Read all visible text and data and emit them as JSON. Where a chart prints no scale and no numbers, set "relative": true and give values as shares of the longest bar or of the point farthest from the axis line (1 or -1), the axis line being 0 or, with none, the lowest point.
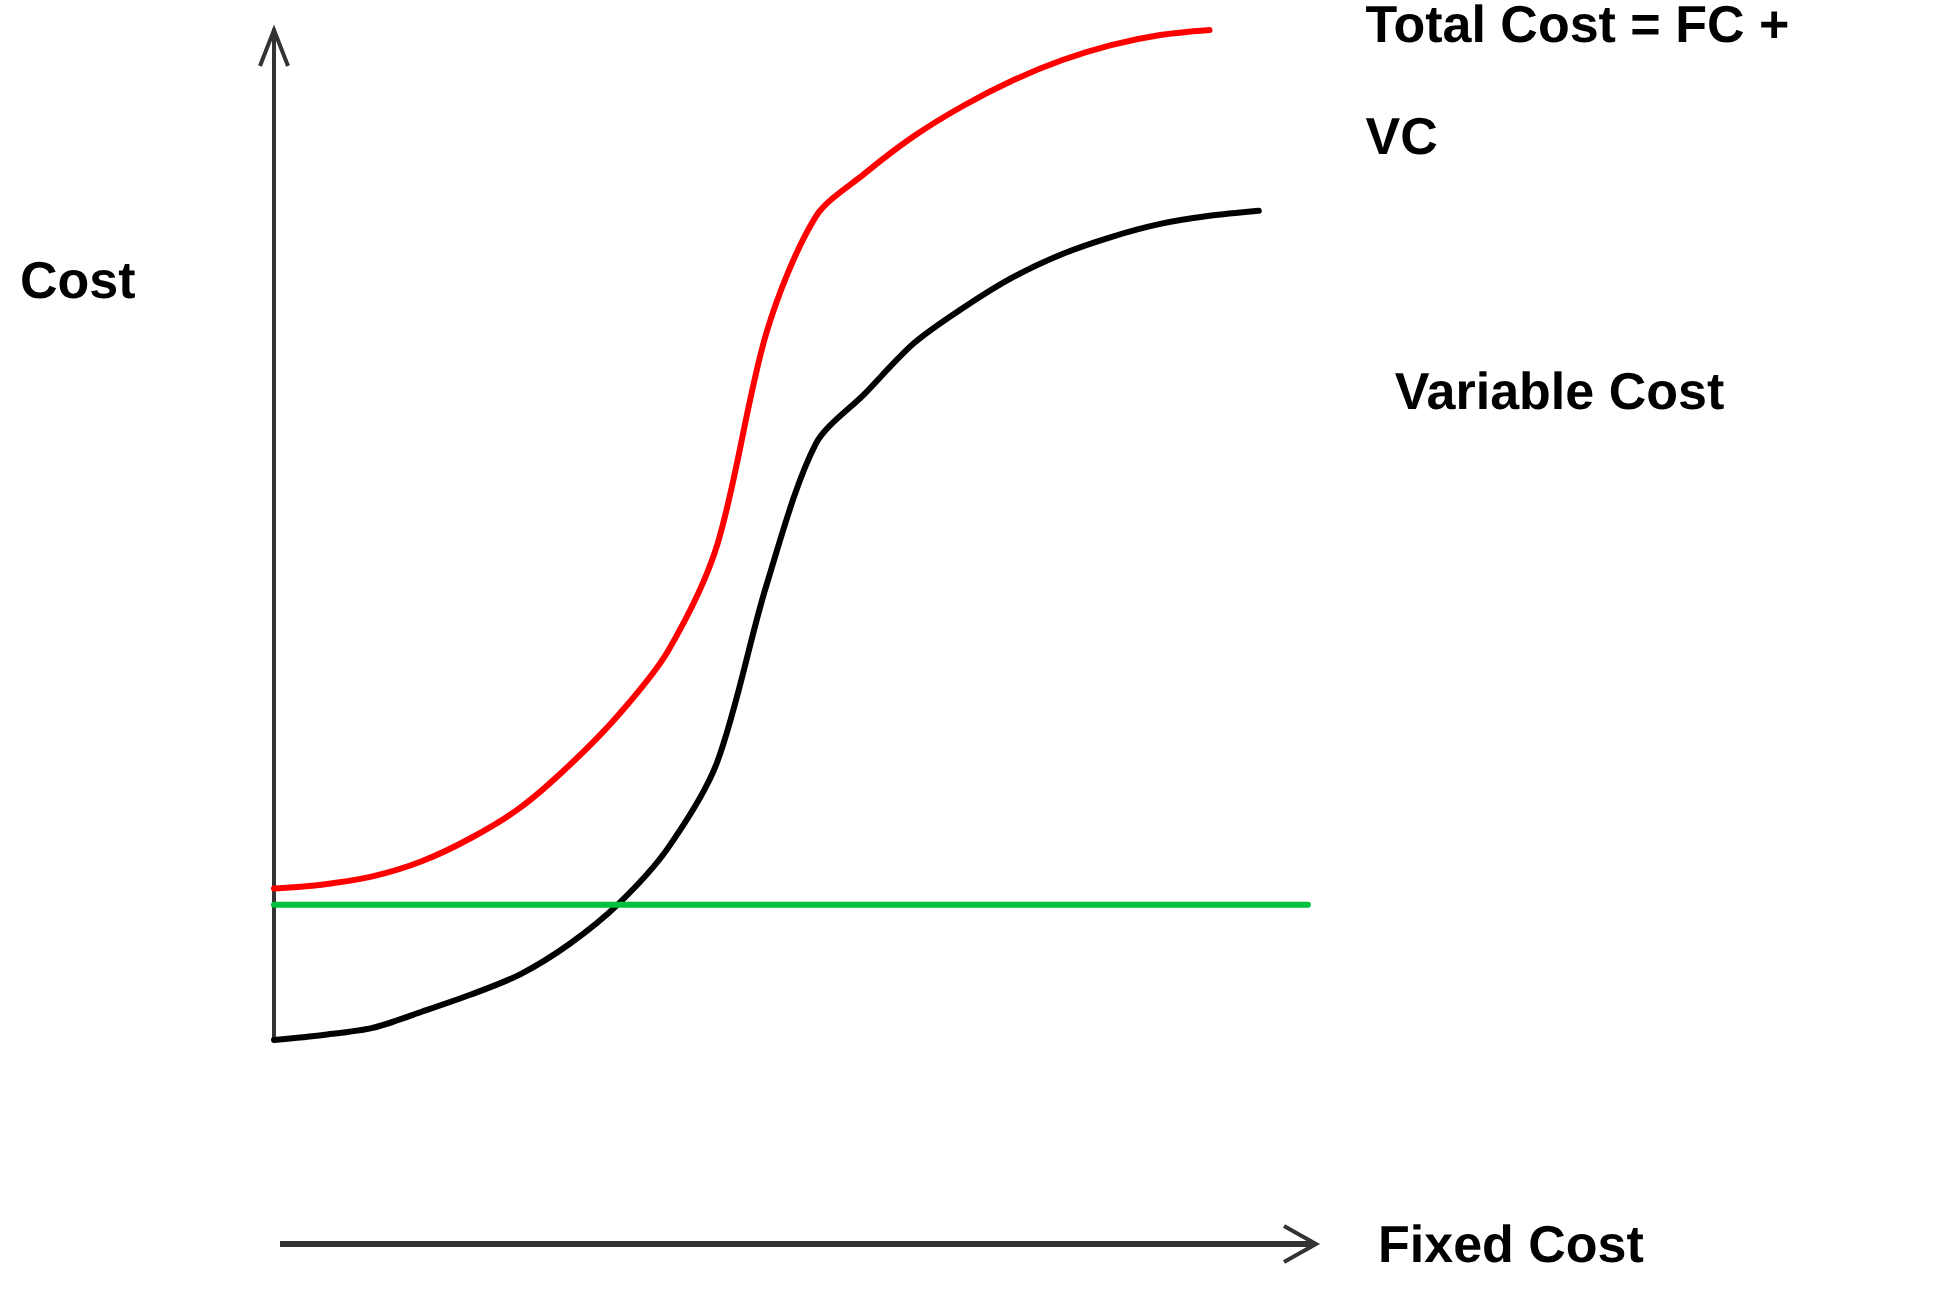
{
  "chart_data": {
    "type": "line",
    "relative": true,
    "xlabel": "Fixed Cost",
    "ylabel": "Cost",
    "grid": false,
    "legend": false,
    "marker": "none",
    "line_style": "solid",
    "categories": [
      null,
      null,
      null,
      null,
      null,
      null,
      null,
      null,
      null,
      null,
      null,
      null,
      null,
      null,
      null,
      null,
      null,
      null,
      null,
      null,
      null,
      null
    ],
    "series": [
      {
        "name": "Total Cost = FC + VC",
        "color": "#ff0000",
        "values": [
          0.15,
          0.154,
          0.162,
          0.177,
          0.2,
          0.23,
          0.272,
          0.322,
          0.385,
          0.49,
          0.7,
          0.815,
          0.858,
          0.895,
          0.925,
          0.95,
          0.97,
          0.985,
          0.995,
          1.0,
          null,
          null
        ]
      },
      {
        "name": "Variable Cost",
        "color": "#000000",
        "values": [
          0,
          0.005,
          0.012,
          0.028,
          0.045,
          0.065,
          0.095,
          0.135,
          0.19,
          0.275,
          0.45,
          0.59,
          0.64,
          0.69,
          0.725,
          0.755,
          0.778,
          0.795,
          0.808,
          0.816,
          0.821,
          null
        ]
      },
      {
        "color": "#00c040",
        "values": [
          0.134,
          0.134,
          0.134,
          0.134,
          0.134,
          0.134,
          0.134,
          0.134,
          0.134,
          0.134,
          0.134,
          0.134,
          0.134,
          0.134,
          0.134,
          0.134,
          0.134,
          0.134,
          0.134,
          0.134,
          0.134,
          0.134
        ]
      }
    ]
  }
}
